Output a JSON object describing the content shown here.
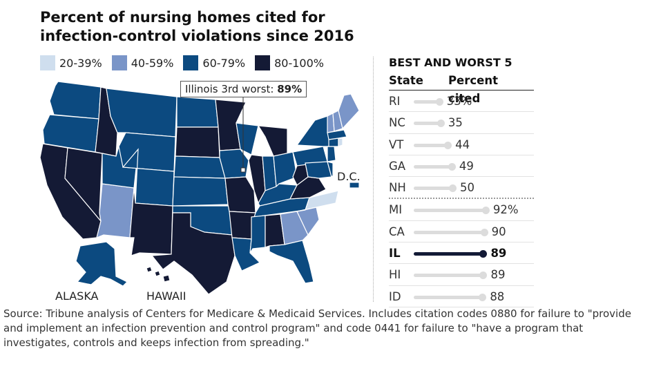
{
  "title": "Percent of nursing homes cited for infection-control violations since 2016",
  "legend": [
    {
      "label": "20-39%",
      "color": "#cfdeee"
    },
    {
      "label": "40-59%",
      "color": "#7a95c8"
    },
    {
      "label": "60-79%",
      "color": "#0c4a80"
    },
    {
      "label": "80-100%",
      "color": "#141a35"
    }
  ],
  "callout": {
    "prefix": "Illinois 3rd worst:",
    "value": "89%"
  },
  "map_labels": {
    "dc": "D.C.",
    "alaska": "ALASKA",
    "hawaii": "HAWAII"
  },
  "side_panel": {
    "title": "BEST AND WORST 5",
    "col_state": "State",
    "col_percent": "Percent cited"
  },
  "chart_data": [
    {
      "type": "bar",
      "title": "BEST AND WORST 5",
      "xlabel": "State",
      "ylabel": "Percent cited",
      "categories": [
        "RI",
        "NC",
        "VT",
        "GA",
        "NH",
        "MI",
        "CA",
        "IL",
        "HI",
        "ID"
      ],
      "values": [
        33,
        35,
        44,
        49,
        50,
        92,
        90,
        89,
        89,
        88
      ],
      "labels": [
        "33%",
        "35",
        "44",
        "49",
        "50",
        "92%",
        "90",
        "89",
        "89",
        "88"
      ],
      "highlight": "IL",
      "highlight_color": "#131a36",
      "bar_color": "#dcdcdc",
      "ylim": [
        0,
        100
      ]
    },
    {
      "type": "heatmap",
      "title": "Percent of nursing homes cited for infection-control violations since 2016",
      "bins": [
        "20-39%",
        "40-59%",
        "60-79%",
        "80-100%"
      ],
      "states_by_bin": {
        "20-39%": [
          "RI",
          "NC"
        ],
        "40-59%": [
          "VT",
          "GA",
          "NH",
          "AZ",
          "SC",
          "ME"
        ],
        "60-79%": [
          "WA",
          "OR",
          "MT",
          "WY",
          "UT",
          "CO",
          "ND",
          "NE",
          "KS",
          "OK",
          "IA",
          "WI",
          "LA",
          "MS",
          "FL",
          "KY",
          "TN",
          "IN",
          "OH",
          "PA",
          "NY",
          "NJ",
          "CT",
          "MA",
          "DE",
          "AK",
          "DC",
          "MD"
        ],
        "80-100%": [
          "CA",
          "NV",
          "ID",
          "NM",
          "TX",
          "SD",
          "MN",
          "MO",
          "AR",
          "IL",
          "MI",
          "AL",
          "WV",
          "VA",
          "HI"
        ]
      }
    }
  ],
  "source": "Source: Tribune analysis of Centers for Medicare & Medicaid Services. Includes citation codes 0880 for failure to \"provide and implement an infection prevention and control program\" and code 0441 for failure to \"have a program that investigates, controls and keeps infection from spreading.\""
}
